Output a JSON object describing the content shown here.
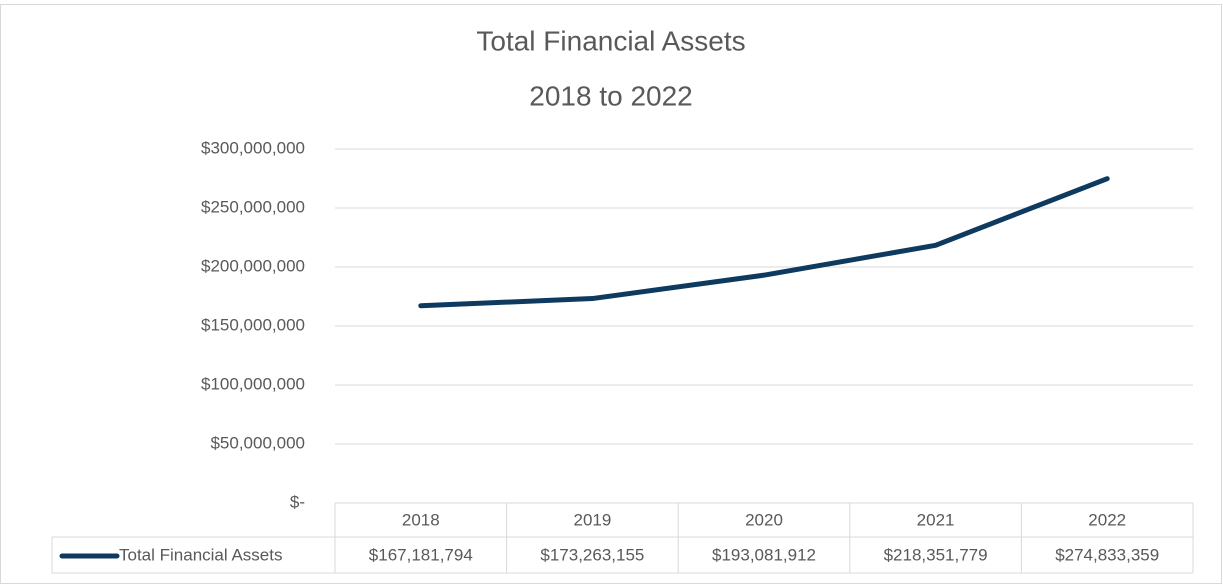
{
  "chart_data": {
    "type": "line",
    "title": "Total Financial Assets",
    "subtitle": "2018 to 2022",
    "categories": [
      "2018",
      "2019",
      "2020",
      "2021",
      "2022"
    ],
    "series": [
      {
        "name": "Total Financial Assets",
        "color": "#0e3a5f",
        "values": [
          167181794,
          173263155,
          193081912,
          218351779,
          274833359
        ],
        "value_labels": [
          "$167,181,794",
          "$173,263,155",
          "$193,081,912",
          "$218,351,779",
          "$274,833,359"
        ]
      }
    ],
    "ylim": [
      0,
      300000000
    ],
    "yticks": [
      {
        "value": 0,
        "label": "$-"
      },
      {
        "value": 50000000,
        "label": "$50,000,000"
      },
      {
        "value": 100000000,
        "label": "$100,000,000"
      },
      {
        "value": 150000000,
        "label": "$150,000,000"
      },
      {
        "value": 200000000,
        "label": "$200,000,000"
      },
      {
        "value": 250000000,
        "label": "$250,000,000"
      },
      {
        "value": 300000000,
        "label": "$300,000,000"
      }
    ],
    "grid": true,
    "legend": "data-table"
  }
}
